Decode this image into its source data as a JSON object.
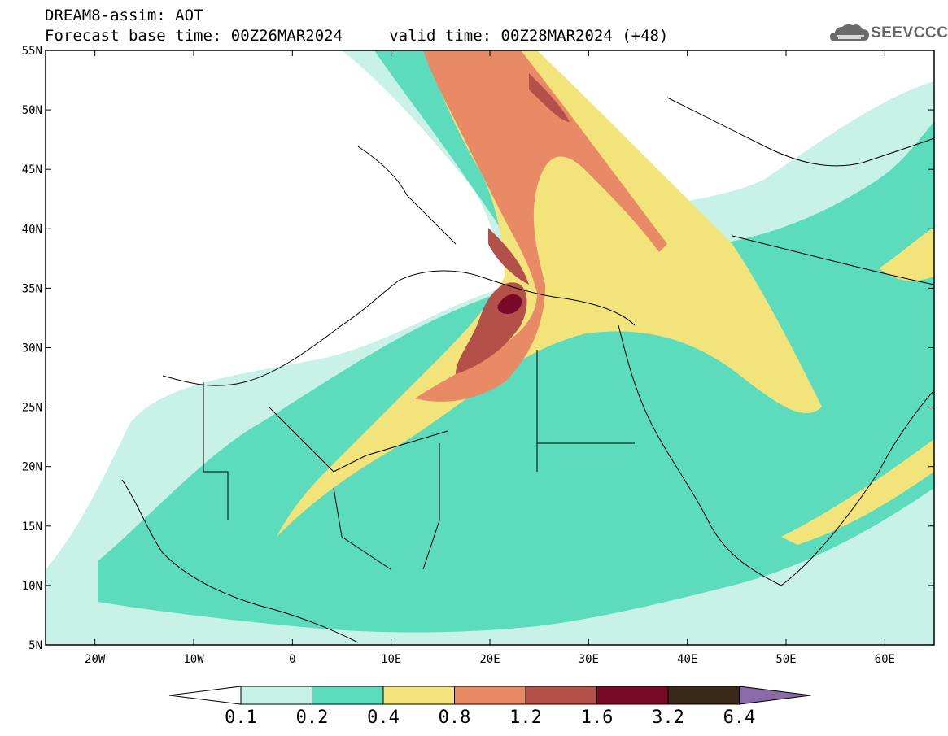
{
  "title": {
    "line1": "DREAM8-assim: AOT",
    "line2": "Forecast base time: 00Z26MAR2024     valid time: 00Z28MAR2024 (+48)"
  },
  "logo": {
    "text": "SEEVCCC",
    "icon": "cloud-icon"
  },
  "map": {
    "lat_ticks": [
      "55N",
      "50N",
      "45N",
      "40N",
      "35N",
      "30N",
      "25N",
      "20N",
      "15N",
      "10N",
      "5N"
    ],
    "lon_ticks": [
      "20W",
      "10W",
      "0",
      "10E",
      "20E",
      "30E",
      "40E",
      "50E",
      "60E"
    ],
    "lon_range": [
      -25,
      65
    ],
    "lat_range": [
      5,
      55
    ]
  },
  "colorbar": {
    "levels": [
      "0.1",
      "0.2",
      "0.4",
      "0.8",
      "1.2",
      "1.6",
      "3.2",
      "6.4"
    ],
    "colors": [
      "#c8f2e8",
      "#5cdcbc",
      "#f2e47a",
      "#e88a66",
      "#b4504a",
      "#780a28",
      "#3a2818",
      "#8a6aa8"
    ],
    "under_color": "#ffffff"
  }
}
